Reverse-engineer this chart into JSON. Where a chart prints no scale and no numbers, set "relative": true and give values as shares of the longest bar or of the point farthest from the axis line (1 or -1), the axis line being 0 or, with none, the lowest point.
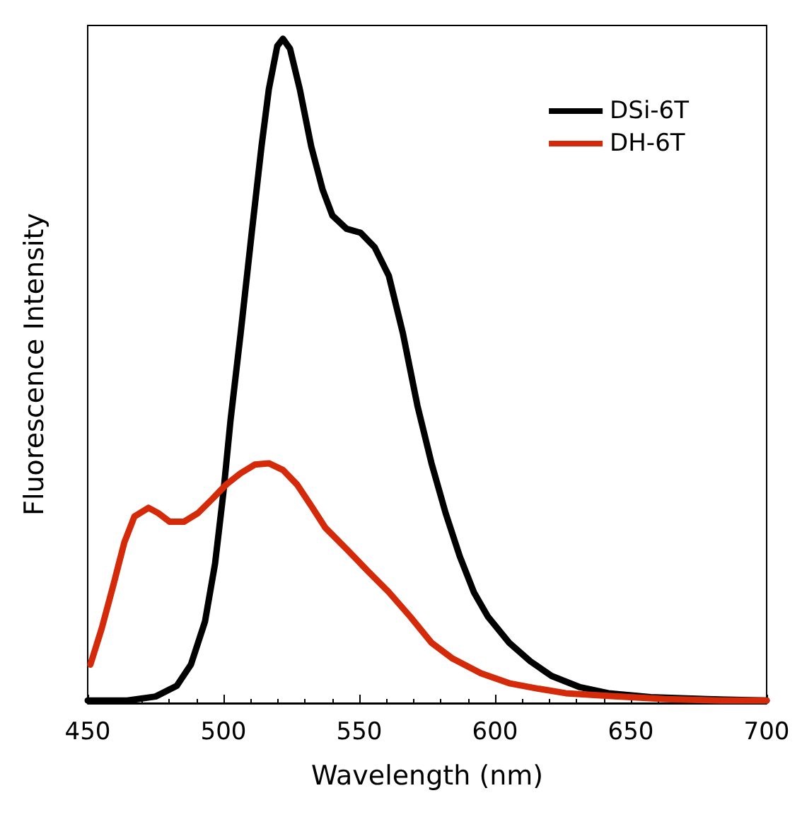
{
  "chart_data": {
    "type": "line",
    "xlabel": "Wavelength (nm)",
    "ylabel": "Fluorescence Intensity",
    "relative": true,
    "xlim": [
      450,
      700
    ],
    "xticks": [
      450,
      500,
      550,
      600,
      650,
      700
    ],
    "tick_labels": "x",
    "legend": "top right",
    "marker": "none",
    "line_style": "solid",
    "series": [
      {
        "name": "DSi-6T",
        "color": "#000000",
        "x": [
          450,
          464.6,
          475,
          482.8,
          488,
          493.2,
          496.9,
          500,
          502.6,
          506.3,
          510.4,
          514,
          516.7,
          519.8,
          521.9,
          524.5,
          528.1,
          532.3,
          536.5,
          540.1,
          545.3,
          550.5,
          555.7,
          560.9,
          566.1,
          571.4,
          576.6,
          581.8,
          587,
          592.2,
          597.4,
          605.2,
          613,
          620.8,
          631.3,
          641.7,
          657.3,
          678,
          700
        ],
        "values": [
          0.004,
          0.004,
          0.01,
          0.026,
          0.058,
          0.123,
          0.21,
          0.318,
          0.426,
          0.556,
          0.708,
          0.838,
          0.924,
          0.989,
          1.0,
          0.985,
          0.924,
          0.838,
          0.773,
          0.734,
          0.714,
          0.708,
          0.686,
          0.643,
          0.556,
          0.448,
          0.361,
          0.286,
          0.221,
          0.167,
          0.13,
          0.091,
          0.063,
          0.041,
          0.024,
          0.015,
          0.009,
          0.006,
          0.004
        ]
      },
      {
        "name": "DH-6T",
        "color": "#d42a0a",
        "x": [
          451,
          455.2,
          459.4,
          463.5,
          467.2,
          472.4,
          476,
          480.2,
          485.4,
          490.6,
          495.8,
          501,
          506.3,
          511.5,
          516.7,
          521.9,
          527.1,
          532.3,
          537.5,
          545.3,
          553.1,
          560.9,
          568.8,
          576.6,
          584.4,
          594.8,
          605.2,
          615.6,
          626,
          641.7,
          662.5,
          683.3,
          700
        ],
        "values": [
          0.058,
          0.113,
          0.177,
          0.242,
          0.281,
          0.294,
          0.286,
          0.273,
          0.273,
          0.286,
          0.307,
          0.329,
          0.346,
          0.359,
          0.361,
          0.351,
          0.329,
          0.297,
          0.264,
          0.232,
          0.199,
          0.167,
          0.13,
          0.091,
          0.067,
          0.045,
          0.03,
          0.022,
          0.015,
          0.011,
          0.006,
          0.004,
          0.004
        ]
      }
    ]
  }
}
